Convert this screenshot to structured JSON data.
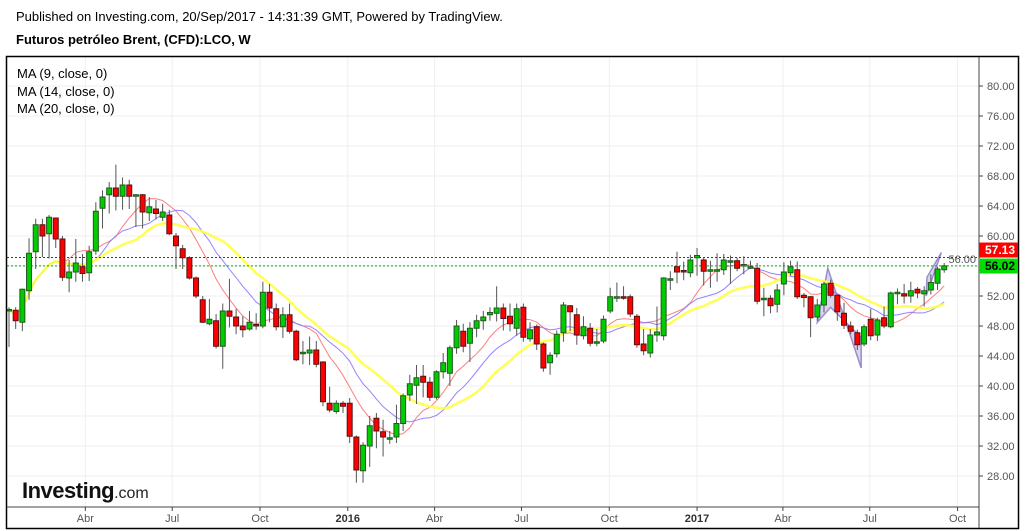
{
  "header": {
    "published": "Published on Investing.com, 20/Sep/2017 - 14:31:39 GMT, Powered by TradingView.",
    "symbol": "Futuros petróleo Brent, (CFD):LCO, W"
  },
  "legend": [
    "MA (9, close, 0)",
    "MA (14, close, 0)",
    "MA (20, close, 0)"
  ],
  "logo": {
    "main": "Investing",
    "suffix": ".com"
  },
  "colors": {
    "up": "#00cc00",
    "down": "#ff0000",
    "ma9": "#ff7070",
    "ma14": "#8877ff",
    "ma20": "#ffff44",
    "drawing": "#9c8cd0"
  },
  "chart_data": {
    "type": "candlestick",
    "interval": "W",
    "x_start": "2015-01-11",
    "ylim": [
      25,
      84
    ],
    "y_ticks": [
      "28.00",
      "32.00",
      "36.00",
      "40.00",
      "44.00",
      "48.00",
      "52.00",
      "56.00",
      "60.00",
      "64.00",
      "68.00",
      "72.00",
      "76.00",
      "80.00"
    ],
    "x_ticks": [
      {
        "label": "Abr",
        "date": "2015-04-01",
        "bold": false
      },
      {
        "label": "Jul",
        "date": "2015-07-01",
        "bold": false
      },
      {
        "label": "Oct",
        "date": "2015-10-01",
        "bold": false
      },
      {
        "label": "2016",
        "date": "2016-01-01",
        "bold": true
      },
      {
        "label": "Abr",
        "date": "2016-04-01",
        "bold": false
      },
      {
        "label": "Jul",
        "date": "2016-07-01",
        "bold": false
      },
      {
        "label": "Oct",
        "date": "2016-10-01",
        "bold": false
      },
      {
        "label": "2017",
        "date": "2017-01-01",
        "bold": true
      },
      {
        "label": "Abr",
        "date": "2017-04-01",
        "bold": false
      },
      {
        "label": "Jul",
        "date": "2017-07-01",
        "bold": false
      },
      {
        "label": "Oct",
        "date": "2017-10-01",
        "bold": false
      }
    ],
    "grid": true,
    "price_lines": [
      {
        "label": "57.13",
        "value": 57.13,
        "color": "#ff0000",
        "text_color": "#ffffff"
      },
      {
        "label": "56.02",
        "value": 56.02,
        "color": "#00dd00",
        "text_color": "#000000"
      }
    ],
    "moving_averages": [
      {
        "name": "MA (9, close, 0)",
        "period": 9,
        "color": "#ff7070",
        "width": 1
      },
      {
        "name": "MA (14, close, 0)",
        "period": 14,
        "color": "#8877ff",
        "width": 1
      },
      {
        "name": "MA (20, close, 0)",
        "period": 20,
        "color": "#ffff44",
        "width": 2.5
      }
    ],
    "ohlc_fields": [
      "open",
      "high",
      "low",
      "close"
    ],
    "ohlc": [
      [
        50,
        50.5,
        45.2,
        50.2
      ],
      [
        50.1,
        50.5,
        47.6,
        48.7
      ],
      [
        48.5,
        53,
        47.3,
        52.9
      ],
      [
        52.7,
        59.7,
        51.5,
        57.7
      ],
      [
        57.9,
        62.3,
        55.6,
        61.5
      ],
      [
        61.5,
        62.3,
        57.2,
        60
      ],
      [
        60.3,
        62.8,
        57,
        62.5
      ],
      [
        62.4,
        62.4,
        58.4,
        59.6
      ],
      [
        59.6,
        60,
        54,
        54.5
      ],
      [
        54.4,
        56.8,
        52.5,
        55.2
      ],
      [
        55.2,
        59.6,
        53.9,
        56.4
      ],
      [
        55.9,
        57.6,
        53.9,
        55
      ],
      [
        55.1,
        58.7,
        54,
        57.9
      ],
      [
        58,
        64.5,
        57.5,
        63.3
      ],
      [
        63.7,
        66.1,
        61,
        65.2
      ],
      [
        65.5,
        67.2,
        63,
        66.4
      ],
      [
        66.4,
        69.5,
        63.4,
        65.3
      ],
      [
        65.3,
        67.8,
        63.5,
        66.8
      ],
      [
        66.8,
        67.5,
        63.6,
        65.3
      ],
      [
        65.5,
        65.6,
        61.2,
        65.5
      ],
      [
        65.5,
        65.6,
        61,
        63.2
      ],
      [
        63.1,
        65.2,
        62,
        63.9
      ],
      [
        63.6,
        64.8,
        62.2,
        63
      ],
      [
        62.5,
        64.3,
        62,
        63.2
      ],
      [
        62.8,
        63.5,
        60.1,
        60.3
      ],
      [
        60,
        60.4,
        55.6,
        58.7
      ],
      [
        58.3,
        58.8,
        55.6,
        57.1
      ],
      [
        57.1,
        57.3,
        54.2,
        54.4
      ],
      [
        54.4,
        54.6,
        51.7,
        52
      ],
      [
        51.5,
        52,
        48.4,
        48.5
      ],
      [
        48.3,
        51.6,
        48.1,
        48.9
      ],
      [
        48.7,
        49.6,
        45,
        45.3
      ],
      [
        45.3,
        51,
        42.3,
        50
      ],
      [
        50,
        54.3,
        47.8,
        49.3
      ],
      [
        49.2,
        50.3,
        46.9,
        48
      ],
      [
        48,
        49.3,
        46.5,
        47.5
      ],
      [
        47.6,
        50,
        47.4,
        48.5
      ],
      [
        48.2,
        49.7,
        47.5,
        48
      ],
      [
        48,
        53.9,
        47.7,
        52.5
      ],
      [
        52.5,
        53.6,
        48.5,
        50.4
      ],
      [
        50.3,
        51,
        47.4,
        47.9
      ],
      [
        47.9,
        50.5,
        46.4,
        49.5
      ],
      [
        49.5,
        51,
        47,
        47.3
      ],
      [
        47.3,
        47.5,
        43.3,
        43.5
      ],
      [
        44.4,
        46,
        42.9,
        44.5
      ],
      [
        44.4,
        46.6,
        42.8,
        44.8
      ],
      [
        44.8,
        46,
        42.5,
        42.9
      ],
      [
        43.2,
        43.3,
        37.3,
        37.9
      ],
      [
        37.7,
        39.9,
        36.5,
        36.8
      ],
      [
        36.6,
        38.1,
        36.3,
        37.7
      ],
      [
        37.7,
        38,
        36.4,
        37.3
      ],
      [
        37.7,
        38.4,
        32.4,
        33.3
      ],
      [
        33.2,
        33.4,
        27.1,
        28.8
      ],
      [
        28.7,
        32.5,
        27.1,
        32.1
      ],
      [
        32,
        36,
        29.2,
        34.7
      ],
      [
        35.7,
        36.4,
        31.7,
        34
      ],
      [
        33.9,
        35.5,
        30.6,
        33.2
      ],
      [
        32.9,
        34,
        32.3,
        33.1
      ],
      [
        33.2,
        37.5,
        32.4,
        35
      ],
      [
        35,
        39,
        34,
        38.7
      ],
      [
        38.8,
        41.5,
        38,
        40.3
      ],
      [
        40.1,
        42.8,
        37.6,
        41.1
      ],
      [
        41.3,
        42.8,
        38.5,
        40.5
      ],
      [
        40.5,
        41.2,
        38,
        38.5
      ],
      [
        38.5,
        42.1,
        38.2,
        41.9
      ],
      [
        41.9,
        44.4,
        41,
        43.1
      ],
      [
        41.7,
        45.4,
        40,
        45.1
      ],
      [
        45.1,
        48.8,
        44.3,
        48
      ],
      [
        47.3,
        48.3,
        44.5,
        45.3
      ],
      [
        45.7,
        48.5,
        43.2,
        47.7
      ],
      [
        47.7,
        49.5,
        46.5,
        48.7
      ],
      [
        48.7,
        50,
        47.5,
        49.2
      ],
      [
        49.5,
        50.5,
        48.7,
        49.8
      ],
      [
        49.7,
        53.3,
        48.6,
        50.4
      ],
      [
        50.4,
        51,
        47.4,
        49
      ],
      [
        49.3,
        51,
        47.3,
        48.3
      ],
      [
        47.7,
        51,
        46.7,
        50.3
      ],
      [
        50.5,
        51,
        45.9,
        46.5
      ],
      [
        46.3,
        48.5,
        45.9,
        47.5
      ],
      [
        47.9,
        48.2,
        44.8,
        45.6
      ],
      [
        45.6,
        45.8,
        41.9,
        42.4
      ],
      [
        43.1,
        44.5,
        41.5,
        44.1
      ],
      [
        44.3,
        47.4,
        43.8,
        46.9
      ],
      [
        47.1,
        51.2,
        45.9,
        50.8
      ],
      [
        50.7,
        50.8,
        47.3,
        49.9
      ],
      [
        49.5,
        50.4,
        45.5,
        46.8
      ],
      [
        46.7,
        49.3,
        46.2,
        47.9
      ],
      [
        47.7,
        48.4,
        45.3,
        45.7
      ],
      [
        45.9,
        47.6,
        45.3,
        45.9
      ],
      [
        46,
        49.4,
        45.7,
        48.9
      ],
      [
        50,
        53.1,
        49.7,
        51.9
      ],
      [
        51.8,
        53.8,
        51.2,
        51.9
      ],
      [
        51.9,
        53.3,
        51.5,
        51.7
      ],
      [
        51.9,
        52.2,
        49.2,
        49.6
      ],
      [
        49.3,
        49.6,
        45.1,
        45.5
      ],
      [
        45.6,
        47.6,
        44.1,
        44.7
      ],
      [
        44.4,
        47.6,
        43.8,
        46.8
      ],
      [
        46.8,
        50.6,
        45.9,
        47.2
      ],
      [
        46.7,
        54.5,
        46.1,
        54.4
      ],
      [
        54.3,
        55.3,
        52.8,
        54.3
      ],
      [
        55.9,
        57.9,
        53.7,
        55.2
      ],
      [
        55.4,
        56.6,
        54.1,
        55.2
      ],
      [
        55.1,
        57.5,
        54.5,
        56.8
      ],
      [
        57.1,
        58.4,
        54.7,
        57.4
      ],
      [
        56.8,
        57.1,
        53.4,
        55.3
      ],
      [
        55.5,
        56.7,
        53.1,
        55.5
      ],
      [
        55.5,
        57.7,
        53.9,
        55.5
      ],
      [
        55.5,
        57.6,
        54.8,
        56.8
      ],
      [
        56.7,
        57.4,
        53.6,
        56.7
      ],
      [
        56.7,
        57.1,
        55.3,
        55.7
      ],
      [
        56.2,
        57.3,
        54.9,
        56.2
      ],
      [
        55.9,
        56.7,
        55.6,
        55.9
      ],
      [
        55.7,
        56.4,
        50.9,
        51.3
      ],
      [
        51.5,
        53.1,
        49.3,
        51.7
      ],
      [
        51.7,
        52.1,
        49.7,
        50.7
      ],
      [
        50.9,
        53.6,
        49.8,
        52.8
      ],
      [
        53.6,
        56.5,
        52.1,
        55.2
      ],
      [
        55.1,
        56.7,
        54.7,
        55.9
      ],
      [
        55.5,
        56.6,
        51.6,
        51.9
      ],
      [
        52.1,
        52.4,
        50.5,
        51.8
      ],
      [
        51.9,
        52,
        46.5,
        49.1
      ],
      [
        49.2,
        51.6,
        48.7,
        50.8
      ],
      [
        50.8,
        53.9,
        49.8,
        53.6
      ],
      [
        53.7,
        54.2,
        51.8,
        52.1
      ],
      [
        52.1,
        52.2,
        48.7,
        49.9
      ],
      [
        49.7,
        51.1,
        47.6,
        48.1
      ],
      [
        48,
        48.6,
        46.9,
        47.3
      ],
      [
        47.1,
        47.5,
        44.8,
        45.5
      ],
      [
        45.6,
        48.2,
        45.3,
        47.9
      ],
      [
        48.9,
        50.3,
        46.1,
        46.7
      ],
      [
        46.8,
        49.1,
        46,
        48.8
      ],
      [
        49.1,
        50.6,
        47.7,
        48
      ],
      [
        47.9,
        52.6,
        47.7,
        52.4
      ],
      [
        52.5,
        53,
        50.9,
        52.5
      ],
      [
        52.3,
        53.6,
        51,
        52
      ],
      [
        52,
        53.9,
        51.1,
        52.7
      ],
      [
        52.9,
        53.2,
        51.7,
        52.4
      ],
      [
        52.3,
        53.3,
        50.6,
        52.7
      ],
      [
        52.8,
        54.9,
        52.2,
        53.8
      ],
      [
        53.7,
        55.9,
        52.8,
        55.6
      ],
      [
        55.5,
        56.4,
        55.1,
        56.02
      ]
    ],
    "drawings": [
      {
        "type": "wedge",
        "points": [
          [
            "2017-05-07",
            48.5
          ],
          [
            "2017-05-18",
            55.7
          ],
          [
            "2017-06-22",
            42.4
          ],
          [
            "2017-06-22",
            46.5
          ],
          [
            "2017-05-21",
            50.5
          ]
        ]
      },
      {
        "type": "wedge",
        "points": [
          [
            "2017-08-29",
            52.0
          ],
          [
            "2017-09-14",
            57.8
          ],
          [
            "2017-08-30",
            54.5
          ]
        ]
      }
    ]
  }
}
